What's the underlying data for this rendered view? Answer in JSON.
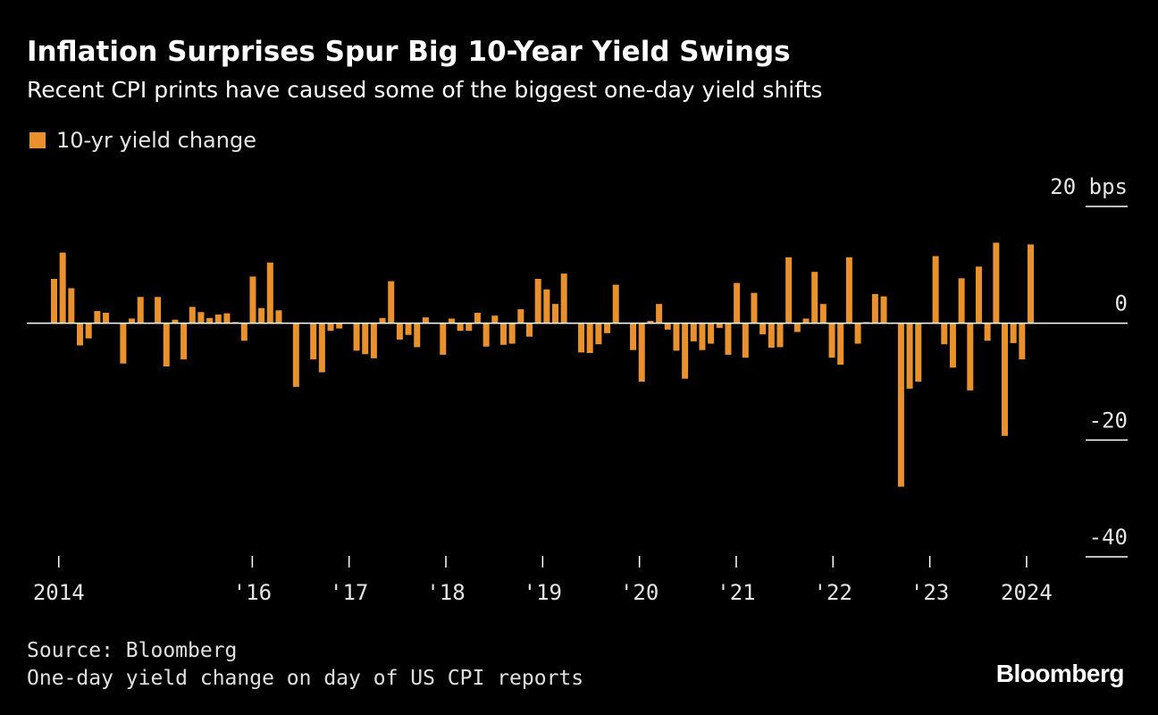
{
  "colors": {
    "background": "#000000",
    "bar": "#e8912d",
    "baseline": "#ffffff",
    "text": "#e6e6e6"
  },
  "header": {
    "title": "Inflation Surprises Spur Big 10-Year Yield Swings",
    "subtitle": "Recent CPI prints have caused some of the biggest one-day yield shifts"
  },
  "legend": {
    "label": "10-yr yield change"
  },
  "footer": {
    "source": "Source: Bloomberg",
    "note": "One-day yield change on day of US CPI reports",
    "brand": "Bloomberg"
  },
  "chart_data": {
    "type": "bar",
    "title": "Inflation Surprises Spur Big 10-Year Yield Swings",
    "subtitle": "Recent CPI prints have caused some of the biggest one-day yield shifts",
    "series": [
      {
        "name": "10-yr yield change"
      }
    ],
    "y_unit": "bps",
    "ylim": [
      -40,
      20
    ],
    "y_ticks": [
      {
        "value": 20,
        "label": "20 bps"
      },
      {
        "value": 0,
        "label": "0"
      },
      {
        "value": -20,
        "label": "-20"
      },
      {
        "value": -40,
        "label": "-40"
      }
    ],
    "x_ticks": [
      {
        "year": 2014,
        "label": "2014"
      },
      {
        "year": 2016,
        "label": "'16"
      },
      {
        "year": 2017,
        "label": "'17"
      },
      {
        "year": 2018,
        "label": "'18"
      },
      {
        "year": 2019,
        "label": "'19"
      },
      {
        "year": 2020,
        "label": "'20"
      },
      {
        "year": 2021,
        "label": "'21"
      },
      {
        "year": 2022,
        "label": "'22"
      },
      {
        "year": 2023,
        "label": "'23"
      },
      {
        "year": 2024,
        "label": "2024"
      }
    ],
    "x_start_year": 2013.67,
    "x_end_year": 2024.25,
    "grid": false,
    "legend_position": "top-left",
    "values": [
      7.6,
      12.1,
      6.0,
      -3.8,
      -2.6,
      2.1,
      1.8,
      0,
      -6.9,
      0.8,
      4.5,
      0,
      4.5,
      -7.4,
      0.6,
      -6.2,
      2.8,
      1.9,
      0.9,
      1.5,
      1.7,
      0.2,
      -3.0,
      8.0,
      2.6,
      10.4,
      2.2,
      0,
      -10.9,
      0,
      -6.2,
      -8.4,
      -1.3,
      -0.9,
      0,
      -4.7,
      -5.3,
      -6.0,
      0.9,
      7.2,
      -2.8,
      -2.0,
      -4.1,
      1.0,
      0,
      -5.4,
      0.8,
      -1.3,
      -1.3,
      1.8,
      -4.0,
      1.3,
      -3.7,
      -3.5,
      2.4,
      -2.3,
      7.6,
      5.8,
      3.3,
      8.5,
      0,
      -5.0,
      -5.1,
      -3.6,
      -1.7,
      6.6,
      0,
      -4.6,
      -10.0,
      0.4,
      3.3,
      -1.1,
      -4.7,
      -9.5,
      -3.1,
      -4.6,
      -3.5,
      -0.8,
      -5.4,
      6.9,
      -5.9,
      5.2,
      -1.9,
      -4.2,
      -4.1,
      11.3,
      -1.5,
      0.8,
      8.8,
      3.3,
      -5.9,
      -7.1,
      11.3,
      -3.5,
      0.2,
      5.0,
      4.6,
      0,
      -28.0,
      -11.2,
      -10.0,
      0,
      11.5,
      -3.6,
      -7.6,
      7.7,
      -11.5,
      9.7,
      -3.0,
      13.8,
      -19.3,
      -3.4,
      -6.2,
      13.5
    ]
  }
}
